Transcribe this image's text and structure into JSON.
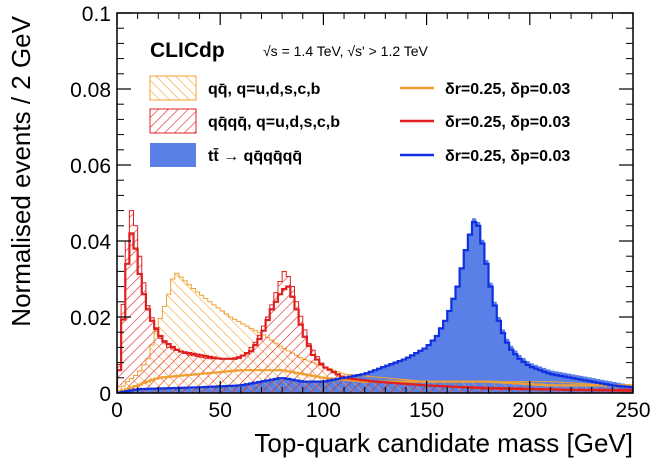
{
  "chart_data": {
    "type": "line",
    "title": "CLICdp",
    "subtitle_energy": "√s = 1.4 TeV, √s' > 1.2 TeV",
    "xlabel": "Top-quark candidate mass [GeV]",
    "ylabel": "Normalised events / 2 GeV",
    "xlim": [
      0,
      250
    ],
    "ylim": [
      0,
      0.1
    ],
    "xticks": [
      0,
      50,
      100,
      150,
      200,
      250
    ],
    "xtick_labels": [
      "0",
      "50",
      "100",
      "150",
      "200",
      "250"
    ],
    "yticks": [
      0,
      0.02,
      0.04,
      0.06,
      0.08,
      0.1
    ],
    "ytick_labels": [
      "0",
      "0.02",
      "0.04",
      "0.06",
      "0.08",
      "0.1"
    ],
    "grid": false,
    "legend_placement": "top",
    "bin_width": 2,
    "legend": [
      {
        "label": "qq̄, q=u,d,s,c,b",
        "style": "hatch",
        "color": "#f0a030"
      },
      {
        "label": "qq̄qq̄, q=u,d,s,c,b",
        "style": "hatch",
        "color": "#e02020"
      },
      {
        "label": "tt̄ → qq̄qq̄qq̄",
        "style": "fill",
        "color": "#5a7fe6"
      },
      {
        "label": "δr=0.25, δp=0.03",
        "style": "line",
        "color": "#f0a030"
      },
      {
        "label": "δr=0.25, δp=0.03",
        "style": "line",
        "color": "#e02020"
      },
      {
        "label": "δr=0.25, δp=0.03",
        "style": "line",
        "color": "#1030e0"
      }
    ],
    "series": [
      {
        "style": "hatch",
        "color": "#f0a030",
        "points": [
          [
            0,
            0
          ],
          [
            5,
            0.003
          ],
          [
            10,
            0.005
          ],
          [
            15,
            0.009
          ],
          [
            20,
            0.018
          ],
          [
            25,
            0.026
          ],
          [
            28,
            0.032
          ],
          [
            32,
            0.03
          ],
          [
            38,
            0.027
          ],
          [
            45,
            0.024
          ],
          [
            55,
            0.02
          ],
          [
            65,
            0.017
          ],
          [
            72,
            0.015
          ],
          [
            80,
            0.012
          ],
          [
            90,
            0.009
          ],
          [
            100,
            0.007
          ],
          [
            110,
            0.005
          ],
          [
            130,
            0.004
          ],
          [
            150,
            0.003
          ],
          [
            180,
            0.003
          ],
          [
            210,
            0.003
          ],
          [
            240,
            0.002
          ],
          [
            250,
            0.002
          ]
        ]
      },
      {
        "style": "hatch",
        "color": "#e02020",
        "points": [
          [
            0,
            0
          ],
          [
            2,
            0.015
          ],
          [
            5,
            0.04
          ],
          [
            7,
            0.048
          ],
          [
            9,
            0.044
          ],
          [
            12,
            0.032
          ],
          [
            15,
            0.023
          ],
          [
            20,
            0.015
          ],
          [
            25,
            0.012
          ],
          [
            35,
            0.01
          ],
          [
            45,
            0.009
          ],
          [
            55,
            0.009
          ],
          [
            62,
            0.01
          ],
          [
            68,
            0.014
          ],
          [
            73,
            0.02
          ],
          [
            78,
            0.028
          ],
          [
            81,
            0.032
          ],
          [
            84,
            0.03
          ],
          [
            88,
            0.022
          ],
          [
            93,
            0.013
          ],
          [
            100,
            0.007
          ],
          [
            110,
            0.004
          ],
          [
            125,
            0.003
          ],
          [
            150,
            0.002
          ],
          [
            180,
            0.0015
          ],
          [
            220,
            0.001
          ],
          [
            250,
            0.001
          ]
        ]
      },
      {
        "style": "fill",
        "color": "#5a7fe6",
        "points": [
          [
            0,
            0
          ],
          [
            10,
            0.0008
          ],
          [
            40,
            0.0012
          ],
          [
            60,
            0.002
          ],
          [
            70,
            0.003
          ],
          [
            80,
            0.004
          ],
          [
            90,
            0.003
          ],
          [
            100,
            0.003
          ],
          [
            110,
            0.004
          ],
          [
            120,
            0.005
          ],
          [
            130,
            0.007
          ],
          [
            140,
            0.009
          ],
          [
            150,
            0.012
          ],
          [
            155,
            0.015
          ],
          [
            160,
            0.02
          ],
          [
            165,
            0.028
          ],
          [
            170,
            0.04
          ],
          [
            173,
            0.046
          ],
          [
            175,
            0.045
          ],
          [
            178,
            0.038
          ],
          [
            182,
            0.026
          ],
          [
            186,
            0.018
          ],
          [
            190,
            0.013
          ],
          [
            195,
            0.01
          ],
          [
            200,
            0.008
          ],
          [
            210,
            0.006
          ],
          [
            220,
            0.005
          ],
          [
            230,
            0.004
          ],
          [
            240,
            0.003
          ],
          [
            250,
            0.002
          ]
        ]
      },
      {
        "style": "line",
        "color": "#f0a030",
        "points": [
          [
            0,
            0
          ],
          [
            10,
            0.002
          ],
          [
            20,
            0.004
          ],
          [
            40,
            0.005
          ],
          [
            60,
            0.006
          ],
          [
            80,
            0.006
          ],
          [
            100,
            0.004
          ],
          [
            120,
            0.003
          ],
          [
            150,
            0.003
          ],
          [
            180,
            0.003
          ],
          [
            210,
            0.002
          ],
          [
            250,
            0.002
          ]
        ]
      },
      {
        "style": "line",
        "color": "#e02020",
        "points": [
          [
            0,
            0
          ],
          [
            2,
            0.012
          ],
          [
            5,
            0.034
          ],
          [
            7,
            0.042
          ],
          [
            9,
            0.038
          ],
          [
            12,
            0.028
          ],
          [
            16,
            0.02
          ],
          [
            22,
            0.014
          ],
          [
            30,
            0.011
          ],
          [
            40,
            0.01
          ],
          [
            50,
            0.009
          ],
          [
            58,
            0.009
          ],
          [
            65,
            0.011
          ],
          [
            70,
            0.015
          ],
          [
            75,
            0.022
          ],
          [
            80,
            0.027
          ],
          [
            83,
            0.028
          ],
          [
            86,
            0.024
          ],
          [
            90,
            0.016
          ],
          [
            95,
            0.01
          ],
          [
            100,
            0.007
          ],
          [
            110,
            0.004
          ],
          [
            125,
            0.003
          ],
          [
            150,
            0.002
          ],
          [
            180,
            0.0012
          ],
          [
            220,
            0.0008
          ],
          [
            250,
            0.0006
          ]
        ]
      },
      {
        "style": "line",
        "color": "#1030e0",
        "points": [
          [
            0,
            0
          ],
          [
            10,
            0.001
          ],
          [
            40,
            0.0015
          ],
          [
            60,
            0.002
          ],
          [
            70,
            0.003
          ],
          [
            80,
            0.004
          ],
          [
            90,
            0.003
          ],
          [
            100,
            0.003
          ],
          [
            110,
            0.004
          ],
          [
            120,
            0.005
          ],
          [
            130,
            0.007
          ],
          [
            140,
            0.009
          ],
          [
            150,
            0.012
          ],
          [
            155,
            0.015
          ],
          [
            160,
            0.02
          ],
          [
            165,
            0.028
          ],
          [
            170,
            0.04
          ],
          [
            173,
            0.045
          ],
          [
            175,
            0.044
          ],
          [
            178,
            0.037
          ],
          [
            182,
            0.025
          ],
          [
            186,
            0.017
          ],
          [
            190,
            0.012
          ],
          [
            195,
            0.009
          ],
          [
            200,
            0.007
          ],
          [
            210,
            0.005
          ],
          [
            220,
            0.004
          ],
          [
            230,
            0.003
          ],
          [
            240,
            0.002
          ],
          [
            250,
            0.0015
          ]
        ]
      }
    ]
  }
}
